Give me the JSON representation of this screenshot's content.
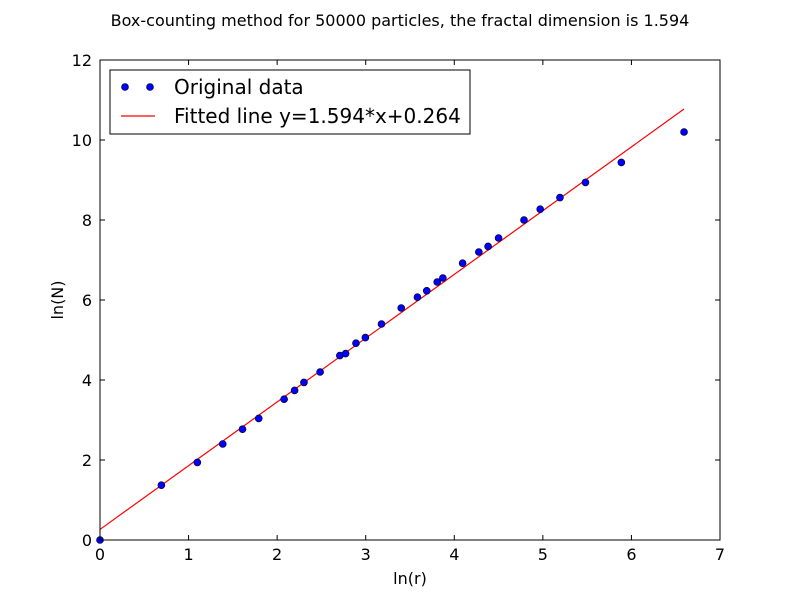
{
  "chart_data": {
    "type": "scatter",
    "title": "Box-counting method for 50000 particles, the fractal dimension is 1.594",
    "xlabel": "ln(r)",
    "ylabel": "ln(N)",
    "xlim": [
      0,
      7
    ],
    "ylim": [
      0,
      12
    ],
    "xticks": [
      "0",
      "1",
      "2",
      "3",
      "4",
      "5",
      "6",
      "7"
    ],
    "yticks": [
      "0",
      "2",
      "4",
      "6",
      "8",
      "10",
      "12"
    ],
    "grid": false,
    "legend_position": "top-left",
    "series": [
      {
        "name": "Original data",
        "kind": "scatter",
        "color": "#0000ff",
        "x": [
          0.0,
          0.693,
          1.099,
          1.386,
          1.609,
          1.792,
          2.079,
          2.197,
          2.303,
          2.485,
          2.708,
          2.773,
          2.89,
          2.996,
          3.178,
          3.401,
          3.584,
          3.689,
          3.807,
          3.871,
          4.094,
          4.277,
          4.382,
          4.5,
          4.787,
          4.97,
          5.193,
          5.481,
          5.886,
          6.594
        ],
        "y": [
          0.0,
          1.37,
          1.94,
          2.4,
          2.77,
          3.04,
          3.52,
          3.74,
          3.94,
          4.2,
          4.61,
          4.66,
          4.92,
          5.06,
          5.4,
          5.8,
          6.07,
          6.23,
          6.45,
          6.55,
          6.92,
          7.2,
          7.34,
          7.55,
          8.0,
          8.27,
          8.56,
          8.94,
          9.44,
          10.2
        ]
      },
      {
        "name": "Fitted line y=1.594*x+0.264",
        "kind": "line",
        "color": "#ff0000",
        "slope": 1.594,
        "intercept": 0.264,
        "x": [
          0.0,
          6.594
        ],
        "y": [
          0.264,
          10.775
        ]
      }
    ]
  }
}
